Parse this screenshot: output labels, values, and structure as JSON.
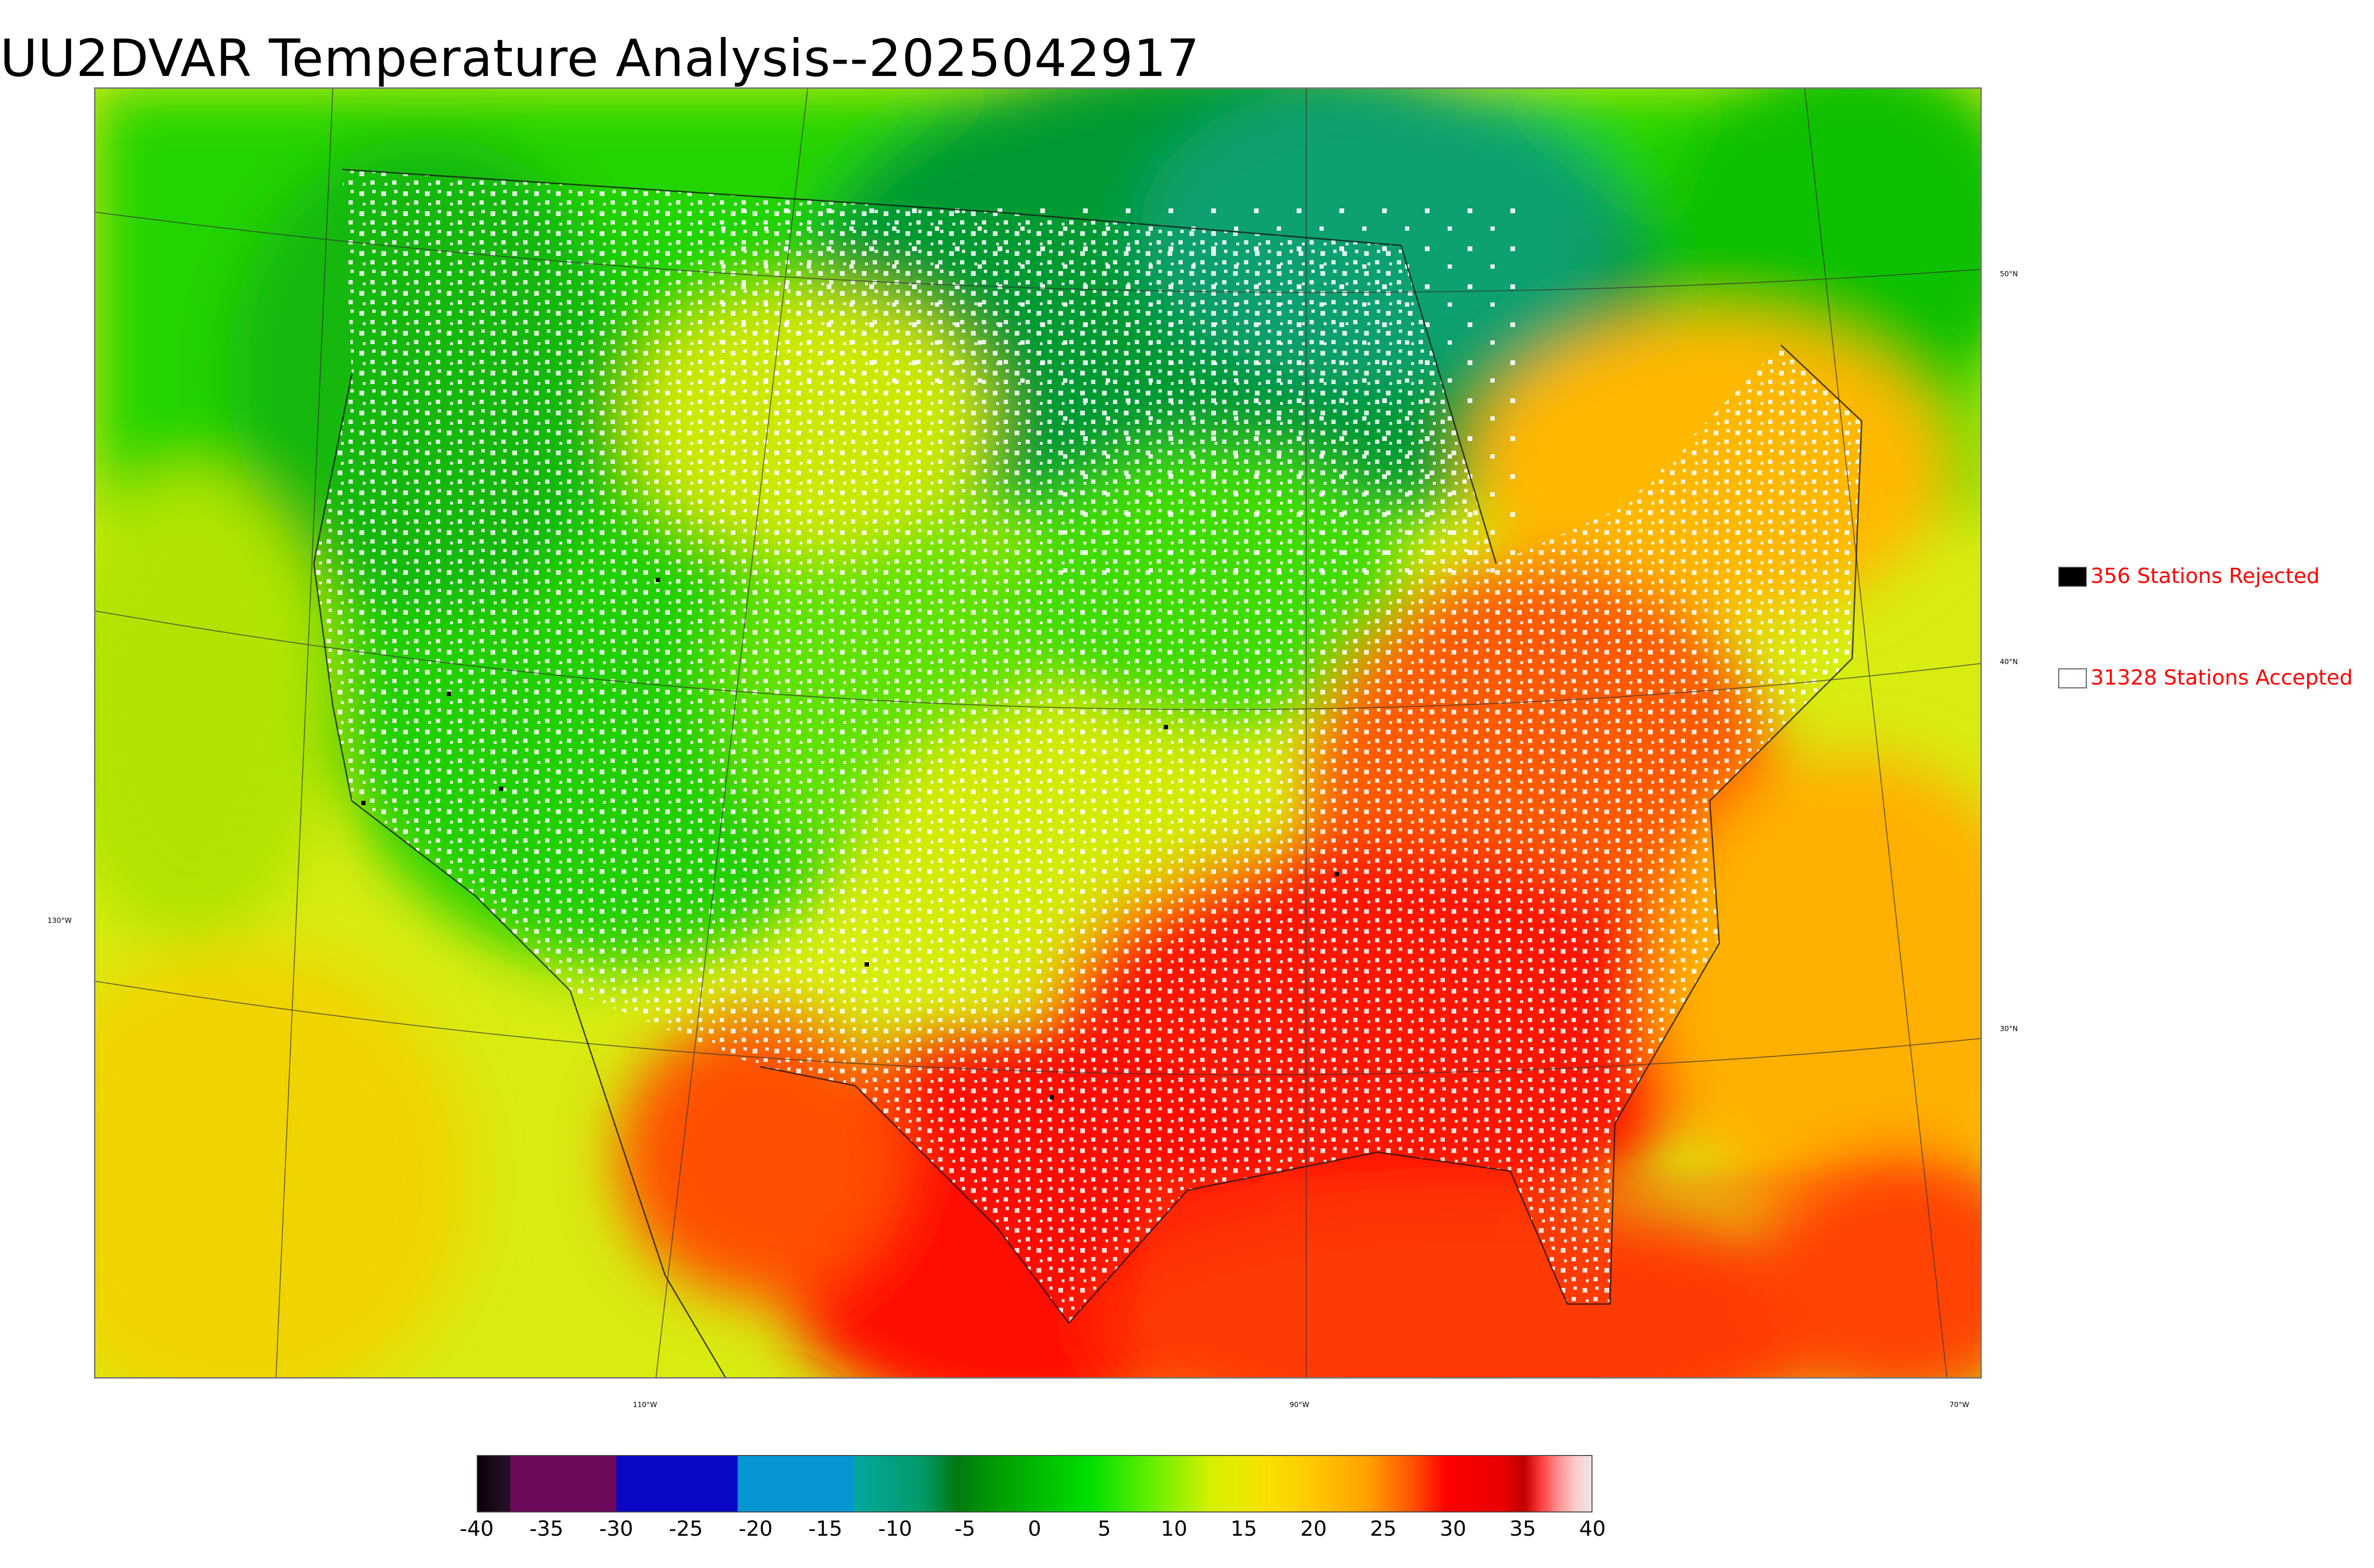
{
  "title": "UU2DVAR Temperature Analysis--2025042917",
  "axis_labels": {
    "lat_50": "50°N",
    "lat_40": "40°N",
    "lat_30": "30°N",
    "lon_130": "130°W",
    "lon_110": "110°W",
    "lon_90": "90°W",
    "lon_70": "70°W"
  },
  "legend": {
    "rejected": {
      "label": "356 Stations Rejected",
      "color": "#000000"
    },
    "accepted": {
      "label": "31328 Stations Accepted",
      "color": "#ffffff"
    }
  },
  "colorbar": {
    "ticks": [
      "-40",
      "-35",
      "-30",
      "-25",
      "-20",
      "-15",
      "-10",
      "-5",
      "0",
      "5",
      "10",
      "15",
      "20",
      "25",
      "30",
      "35",
      "40"
    ],
    "min": -40,
    "max": 40
  },
  "colors": {
    "cold_green": "#00c800",
    "warm_red": "#ff0000",
    "mild_yellow": "#e0f000",
    "text_red": "#ff0000"
  }
}
